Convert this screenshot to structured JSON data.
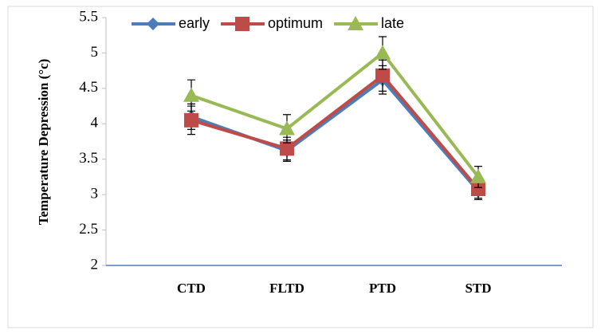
{
  "chart_data": {
    "type": "line",
    "y_label": "Temperature Depression (°c)",
    "categories": [
      "CTD",
      "FLTD",
      "PTD",
      "STD"
    ],
    "series": [
      {
        "name": "early",
        "color": "#4a7ebb",
        "marker": "diamond",
        "values": [
          4.1,
          3.62,
          4.62,
          3.05
        ],
        "errors": [
          0.18,
          0.15,
          0.2,
          0.12
        ]
      },
      {
        "name": "optimum",
        "color": "#be4b48",
        "marker": "square",
        "values": [
          4.05,
          3.65,
          4.68,
          3.08
        ],
        "errors": [
          0.2,
          0.16,
          0.22,
          0.13
        ]
      },
      {
        "name": "late",
        "color": "#98b954",
        "marker": "triangle",
        "values": [
          4.4,
          3.93,
          5.0,
          3.25
        ],
        "errors": [
          0.22,
          0.2,
          0.23,
          0.15
        ]
      }
    ],
    "ylim": [
      2,
      5.5
    ],
    "yticks": [
      2,
      2.5,
      3,
      3.5,
      4,
      4.5,
      5,
      5.5
    ],
    "grid": false
  }
}
